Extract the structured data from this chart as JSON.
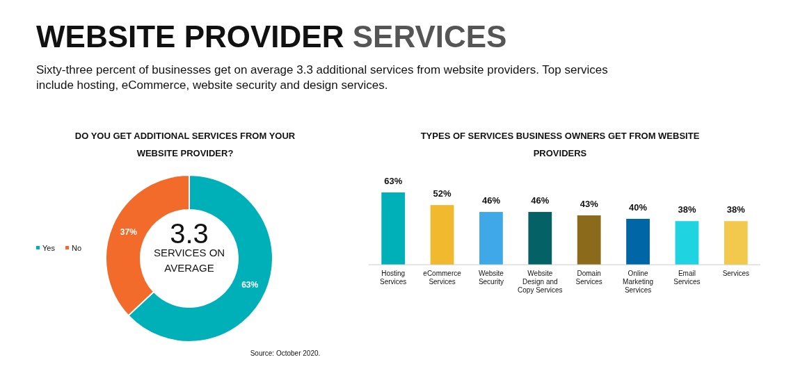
{
  "chart_data": [
    {
      "type": "other",
      "title": "WEBSITE PROVIDER SERVICES",
      "subtitle": "Sixty-three percent of businesses get on average 3.3 additional services from website providers. Top services include hosting, eCommerce, website security and design services.",
      "annotations": [
        "Source: October 2020."
      ]
    },
    {
      "type": "donut",
      "title": "DO YOU GET ADDITIONAL SERVICES FROM YOUR WEBSITE PROVIDER?",
      "categories": [
        "Yes",
        "No"
      ],
      "values": [
        63,
        37
      ],
      "colors": [
        "#00b0b9",
        "#f26b2a"
      ],
      "value_labels": [
        "63%",
        "37%"
      ],
      "legend": "left",
      "annotations": [
        "3.3",
        "SERVICES ON AVERAGE"
      ]
    },
    {
      "type": "bar",
      "title": "TYPES OF SERVICES BUSINESS OWNERS GET FROM WEBSITE PROVIDERS",
      "categories": [
        "Hosting Services",
        "eCommerce Services",
        "Website Security",
        "Website Design and Copy Services",
        "Domain Services",
        "Online Marketing Services",
        "Email Services",
        "Services"
      ],
      "values": [
        63,
        52,
        46,
        46,
        43,
        40,
        38,
        38
      ],
      "colors": [
        "#00b0b9",
        "#f0b92e",
        "#3fa9e8",
        "#046165",
        "#8b6a1c",
        "#0066a6",
        "#1fd3e0",
        "#f2c94c"
      ],
      "value_labels": [
        "63%",
        "52%",
        "46%",
        "46%",
        "43%",
        "40%",
        "38%",
        "38%"
      ]
    }
  ]
}
